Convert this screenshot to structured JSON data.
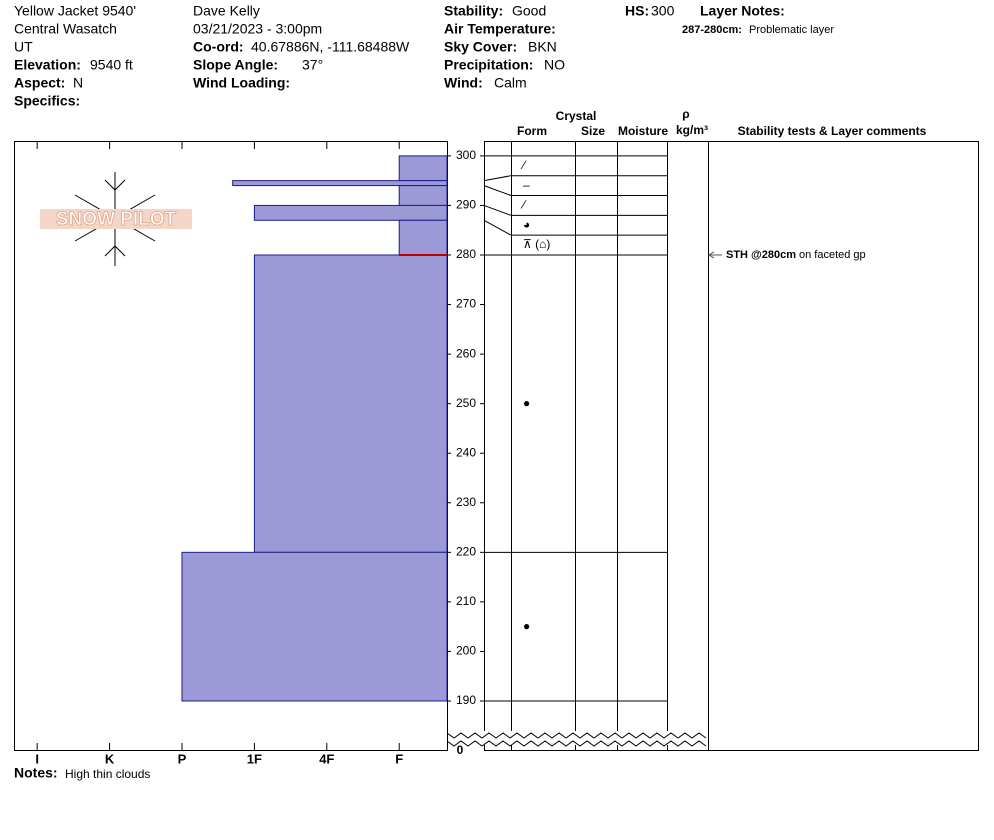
{
  "header": {
    "location": [
      "Yellow Jacket 9540'",
      "Central Wasatch",
      "UT"
    ],
    "elevation": {
      "label": "Elevation:",
      "value": "9540 ft"
    },
    "aspect": {
      "label": "Aspect:",
      "value": "N"
    },
    "specifics": {
      "label": "Specifics:"
    },
    "observer": "Dave Kelly",
    "datetime": "03/21/2023 - 3:00pm",
    "coord": {
      "label": "Co-ord:",
      "value": "40.67886N, -111.68488W"
    },
    "slope_angle": {
      "label": "Slope Angle:",
      "value": "37°"
    },
    "wind_loading": {
      "label": "Wind Loading:"
    },
    "stability": {
      "label": "Stability:",
      "value": "Good"
    },
    "air_temperature": {
      "label": "Air Temperature:"
    },
    "sky_cover": {
      "label": "Sky Cover:",
      "value": "BKN"
    },
    "precipitation": {
      "label": "Precipitation:",
      "value": "NO"
    },
    "wind": {
      "label": "Wind:",
      "value": "Calm"
    },
    "hs": {
      "label": "HS:",
      "value": 300
    },
    "layer_notes": {
      "label": "Layer Notes:",
      "range": "287-280cm:",
      "text": "Problematic layer"
    }
  },
  "logo": "SNOW PILOT",
  "notes": {
    "label": "Notes:",
    "text": "High thin clouds"
  },
  "chart_data": {
    "type": "snow_profile",
    "hardness_lim": [
      6.32,
      0.34
    ],
    "hardness_ticks": [
      {
        "value": 6,
        "label": "I"
      },
      {
        "value": 5,
        "label": "K"
      },
      {
        "value": 4,
        "label": "P"
      },
      {
        "value": 3,
        "label": "1F"
      },
      {
        "value": 2,
        "label": "4F"
      },
      {
        "value": 1,
        "label": "F"
      }
    ],
    "ylim": [
      190,
      303
    ],
    "yticks": [
      190,
      200,
      210,
      220,
      230,
      240,
      250,
      260,
      270,
      280,
      290,
      300
    ],
    "break_tick": 0,
    "color": "#9b9ad6",
    "edge_color": "#1c1c8c",
    "columns": {
      "crystal": "Crystal",
      "form": "Form",
      "size": "Size",
      "moisture": "Moisture",
      "rho": "ρ",
      "density_unit": "kg/m³",
      "comments": "Stability tests & Layer comments"
    },
    "layers": [
      {
        "top": 300,
        "bottom": 295,
        "hardness": 1,
        "form": "∕"
      },
      {
        "top": 295,
        "bottom": 294,
        "hardness": 3.3,
        "form": "–"
      },
      {
        "top": 294,
        "bottom": 290,
        "hardness": 1,
        "form": "∕"
      },
      {
        "top": 290,
        "bottom": 287,
        "hardness": 3,
        "form": "◕"
      },
      {
        "top": 287,
        "bottom": 280,
        "hardness": 1,
        "form": "⊼ (⌂)"
      },
      {
        "top": 280,
        "bottom": 220,
        "hardness": 3,
        "form": "●"
      },
      {
        "top": 220,
        "bottom": 190,
        "hardness": 4,
        "form": "●"
      }
    ],
    "problem_layer": {
      "depth": 280,
      "color": "#c00000"
    },
    "stability_tests": [
      {
        "depth": 280,
        "test": "STH @280cm",
        "comment": "on faceted gp"
      }
    ]
  }
}
